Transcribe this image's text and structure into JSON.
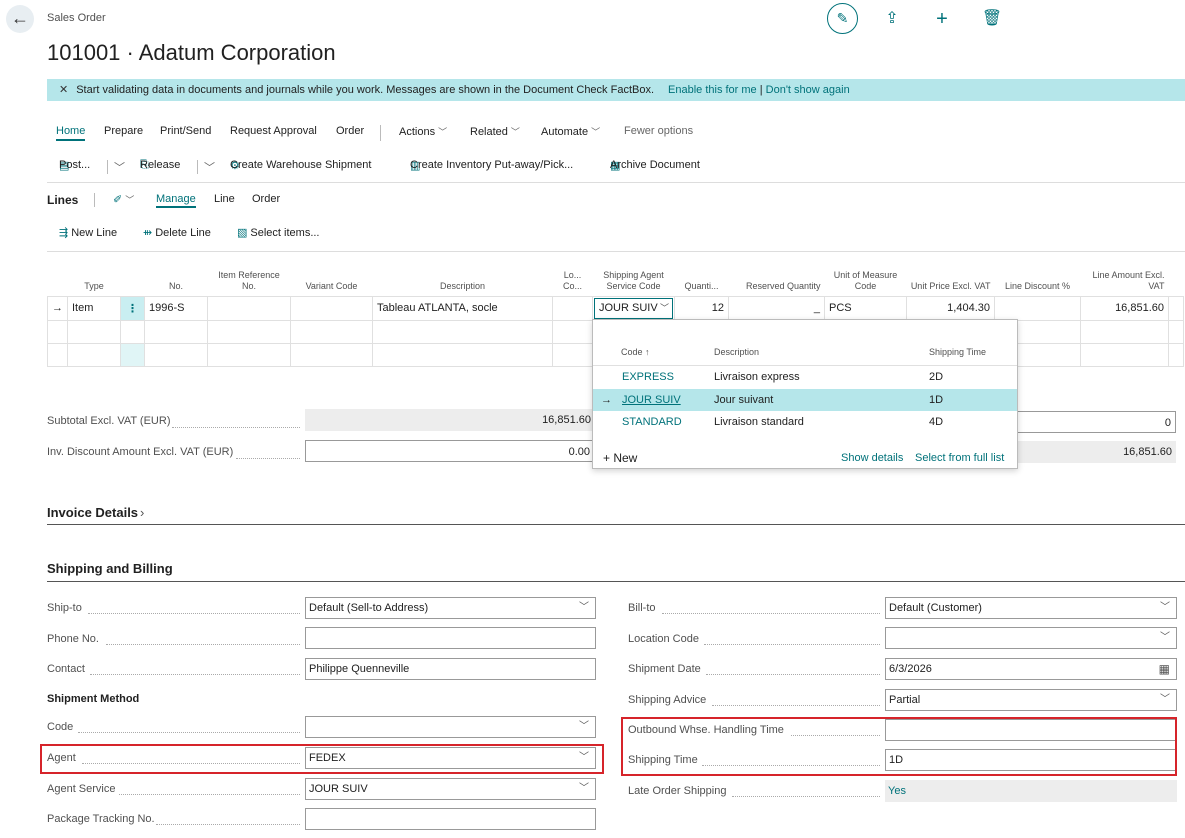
{
  "header": {
    "breadcrumb": "Sales Order",
    "title": "101001 · Adatum Corporation"
  },
  "banner": {
    "message": "Start validating data in documents and journals while you work. Messages are shown in the Document Check FactBox.",
    "enable_link": "Enable this for me",
    "separator": "|",
    "dismiss_link": "Don't show again"
  },
  "menu": {
    "home": "Home",
    "prepare": "Prepare",
    "print_send": "Print/Send",
    "request_approval": "Request Approval",
    "order": "Order",
    "actions": "Actions",
    "related": "Related",
    "automate": "Automate",
    "fewer": "Fewer options"
  },
  "toolbar": {
    "post": "Post...",
    "release": "Release",
    "create_whse": "Create Warehouse Shipment",
    "create_inv": "Create Inventory Put-away/Pick...",
    "archive": "Archive Document"
  },
  "lines": {
    "title": "Lines",
    "manage": "Manage",
    "line": "Line",
    "order": "Order",
    "new_line": "New Line",
    "delete_line": "Delete Line",
    "select_items": "Select items...",
    "columns": {
      "type": "Type",
      "no": "No.",
      "item_ref": "Item Reference No.",
      "variant": "Variant Code",
      "description": "Description",
      "loc": "Lo... Co...",
      "ship_agent": "Shipping Agent Service Code",
      "qty": "Quanti...",
      "reserved": "Reserved Quantity",
      "uom": "Unit of Measure Code",
      "unit_price": "Unit Price Excl. VAT",
      "discount": "Line Discount %",
      "amount": "Line Amount Excl. VAT"
    },
    "row": {
      "type": "Item",
      "no": "1996-S",
      "description": "Tableau ATLANTA, socle",
      "ship_agent": "JOUR SUIV",
      "qty": "12",
      "reserved": "_",
      "uom": "PCS",
      "unit_price": "1,404.30",
      "amount": "16,851.60"
    }
  },
  "dropdown": {
    "col_code": "Code",
    "col_desc": "Description",
    "col_time": "Shipping Time",
    "rows": [
      {
        "code": "EXPRESS",
        "desc": "Livraison express",
        "time": "2D"
      },
      {
        "code": "JOUR SUIV",
        "desc": "Jour suivant",
        "time": "1D"
      },
      {
        "code": "STANDARD",
        "desc": "Livraison standard",
        "time": "4D"
      }
    ],
    "new": "New",
    "show_details": "Show details",
    "select_full": "Select from full list"
  },
  "totals": {
    "subtotal_label": "Subtotal Excl. VAT (EUR)",
    "subtotal_value": "16,851.60",
    "discount_label": "Inv. Discount Amount Excl. VAT (EUR)",
    "discount_value": "0.00",
    "right_value1": "0",
    "right_value2": "16,851.60"
  },
  "invoice_details": "Invoice Details",
  "shipping": {
    "title": "Shipping and Billing",
    "ship_to_label": "Ship-to",
    "ship_to": "Default (Sell-to Address)",
    "phone_label": "Phone No.",
    "phone": "",
    "contact_label": "Contact",
    "contact": "Philippe Quenneville",
    "method_header": "Shipment Method",
    "code_label": "Code",
    "code": "",
    "agent_label": "Agent",
    "agent": "FEDEX",
    "agent_service_label": "Agent Service",
    "agent_service": "JOUR SUIV",
    "tracking_label": "Package Tracking No.",
    "tracking": "",
    "bill_to_label": "Bill-to",
    "bill_to": "Default (Customer)",
    "location_label": "Location Code",
    "location": "",
    "ship_date_label": "Shipment Date",
    "ship_date": "6/3/2026",
    "advice_label": "Shipping Advice",
    "advice": "Partial",
    "outbound_label": "Outbound Whse. Handling Time",
    "outbound": "",
    "ship_time_label": "Shipping Time",
    "ship_time": "1D",
    "late_label": "Late Order Shipping",
    "late": "Yes"
  }
}
